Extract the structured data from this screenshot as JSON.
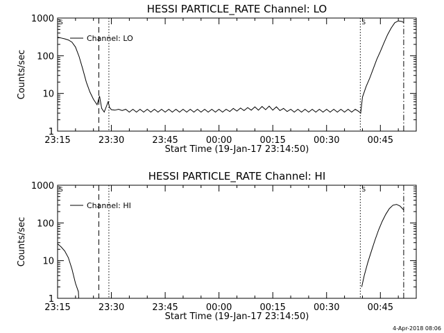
{
  "footer": {
    "timestamp": "4-Apr-2018 08:06"
  },
  "chart_data": [
    {
      "type": "line",
      "title": "HESSI PARTICLE_RATE Channel: LO",
      "xlabel": "Start Time (19-Jan-17 23:14:50)",
      "ylabel": "Counts/sec",
      "yscale": "log",
      "ylim": [
        1,
        1000
      ],
      "xlim_minutes": [
        0,
        100
      ],
      "ytick_labels": [
        "1",
        "10",
        "100",
        "1000"
      ],
      "xtick_labels": [
        "23:15",
        "23:30",
        "23:45",
        "00:00",
        "00:15",
        "00:30",
        "00:45"
      ],
      "legend": {
        "label": "Channel: LO",
        "placement": "top-left"
      },
      "corner_flags": [
        "S",
        "S"
      ],
      "vlines": [
        {
          "style": "dashed",
          "minute": 11.5
        },
        {
          "style": "dotted",
          "minute": 14.3
        },
        {
          "style": "dotted",
          "minute": 84.4
        },
        {
          "style": "dashdot",
          "minute": 96.5
        }
      ],
      "series": [
        {
          "points": [
            [
              0,
              310
            ],
            [
              1,
              295
            ],
            [
              2,
              280
            ],
            [
              3,
              262
            ],
            [
              4,
              230
            ],
            [
              5,
              170
            ],
            [
              6,
              95
            ],
            [
              7,
              45
            ],
            [
              8,
              20
            ],
            [
              9,
              11
            ],
            [
              10,
              7
            ],
            [
              11,
              5
            ],
            [
              11.7,
              8.5
            ],
            [
              12.3,
              4
            ],
            [
              13,
              3.2
            ],
            [
              13.6,
              4.5
            ],
            [
              14.1,
              6
            ],
            [
              14.5,
              4.2
            ],
            [
              15,
              3.7
            ],
            [
              16,
              3.6
            ],
            [
              17,
              3.8
            ],
            [
              18,
              3.5
            ],
            [
              19,
              3.8
            ],
            [
              20,
              3.2
            ],
            [
              21,
              3.8
            ],
            [
              22,
              3.2
            ],
            [
              23,
              3.8
            ],
            [
              24,
              3.2
            ],
            [
              25,
              3.8
            ],
            [
              26,
              3.2
            ],
            [
              27,
              3.8
            ],
            [
              28,
              3.2
            ],
            [
              29,
              3.8
            ],
            [
              30,
              3.2
            ],
            [
              31,
              3.8
            ],
            [
              32,
              3.2
            ],
            [
              33,
              3.8
            ],
            [
              34,
              3.2
            ],
            [
              35,
              3.8
            ],
            [
              36,
              3.2
            ],
            [
              37,
              3.8
            ],
            [
              38,
              3.2
            ],
            [
              39,
              3.8
            ],
            [
              40,
              3.2
            ],
            [
              41,
              3.8
            ],
            [
              42,
              3.2
            ],
            [
              43,
              3.8
            ],
            [
              44,
              3.2
            ],
            [
              45,
              3.8
            ],
            [
              46,
              3.2
            ],
            [
              47,
              3.8
            ],
            [
              48,
              3.3
            ],
            [
              49,
              4.0
            ],
            [
              50,
              3.4
            ],
            [
              51,
              4.1
            ],
            [
              52,
              3.5
            ],
            [
              53,
              4.2
            ],
            [
              54,
              3.6
            ],
            [
              55,
              4.4
            ],
            [
              56,
              3.6
            ],
            [
              57,
              4.5
            ],
            [
              58,
              3.7
            ],
            [
              59,
              4.6
            ],
            [
              60,
              3.6
            ],
            [
              61,
              4.4
            ],
            [
              62,
              3.5
            ],
            [
              63,
              4.0
            ],
            [
              64,
              3.3
            ],
            [
              65,
              3.8
            ],
            [
              66,
              3.2
            ],
            [
              67,
              3.8
            ],
            [
              68,
              3.2
            ],
            [
              69,
              3.8
            ],
            [
              70,
              3.2
            ],
            [
              71,
              3.8
            ],
            [
              72,
              3.2
            ],
            [
              73,
              3.8
            ],
            [
              74,
              3.2
            ],
            [
              75,
              3.8
            ],
            [
              76,
              3.2
            ],
            [
              77,
              3.8
            ],
            [
              78,
              3.2
            ],
            [
              79,
              3.8
            ],
            [
              80,
              3.2
            ],
            [
              81,
              3.8
            ],
            [
              82,
              3.2
            ],
            [
              83,
              3.8
            ],
            [
              84,
              3.3
            ],
            [
              84.5,
              3.0
            ],
            [
              85,
              8
            ],
            [
              86,
              15
            ],
            [
              87,
              25
            ],
            [
              88,
              45
            ],
            [
              89,
              80
            ],
            [
              90,
              130
            ],
            [
              91,
              220
            ],
            [
              92,
              360
            ],
            [
              93,
              540
            ],
            [
              94,
              750
            ],
            [
              95,
              840
            ],
            [
              96,
              810
            ],
            [
              96.5,
              760
            ]
          ]
        }
      ]
    },
    {
      "type": "line",
      "title": "HESSI PARTICLE_RATE Channel: HI",
      "xlabel": "Start Time (19-Jan-17 23:14:50)",
      "ylabel": "Counts/sec",
      "yscale": "log",
      "ylim": [
        1,
        1000
      ],
      "xlim_minutes": [
        0,
        100
      ],
      "ytick_labels": [
        "1",
        "10",
        "100",
        "1000"
      ],
      "xtick_labels": [
        "23:15",
        "23:30",
        "23:45",
        "00:00",
        "00:15",
        "00:30",
        "00:45"
      ],
      "legend": {
        "label": "Channel: HI",
        "placement": "top-left"
      },
      "corner_flags": [
        "S",
        "S"
      ],
      "vlines": [
        {
          "style": "dashed",
          "minute": 11.5
        },
        {
          "style": "dotted",
          "minute": 14.3
        },
        {
          "style": "dotted",
          "minute": 84.4
        },
        {
          "style": "dashdot",
          "minute": 96.5
        }
      ],
      "series": [
        {
          "points": [
            [
              0,
              28
            ],
            [
              1,
              23
            ],
            [
              2,
              18
            ],
            [
              3,
              12
            ],
            [
              4,
              6
            ],
            [
              5,
              2.5
            ],
            [
              5.8,
              1.5
            ],
            [
              5.9,
              1
            ]
          ]
        },
        {
          "points": [
            [
              84.8,
              2
            ],
            [
              85.5,
              4
            ],
            [
              86.5,
              9
            ],
            [
              87.5,
              18
            ],
            [
              88.5,
              35
            ],
            [
              89.5,
              65
            ],
            [
              90.5,
              110
            ],
            [
              91.5,
              170
            ],
            [
              92.5,
              240
            ],
            [
              93.5,
              295
            ],
            [
              94.5,
              310
            ],
            [
              95.5,
              280
            ],
            [
              96.5,
              220
            ]
          ]
        }
      ]
    }
  ]
}
